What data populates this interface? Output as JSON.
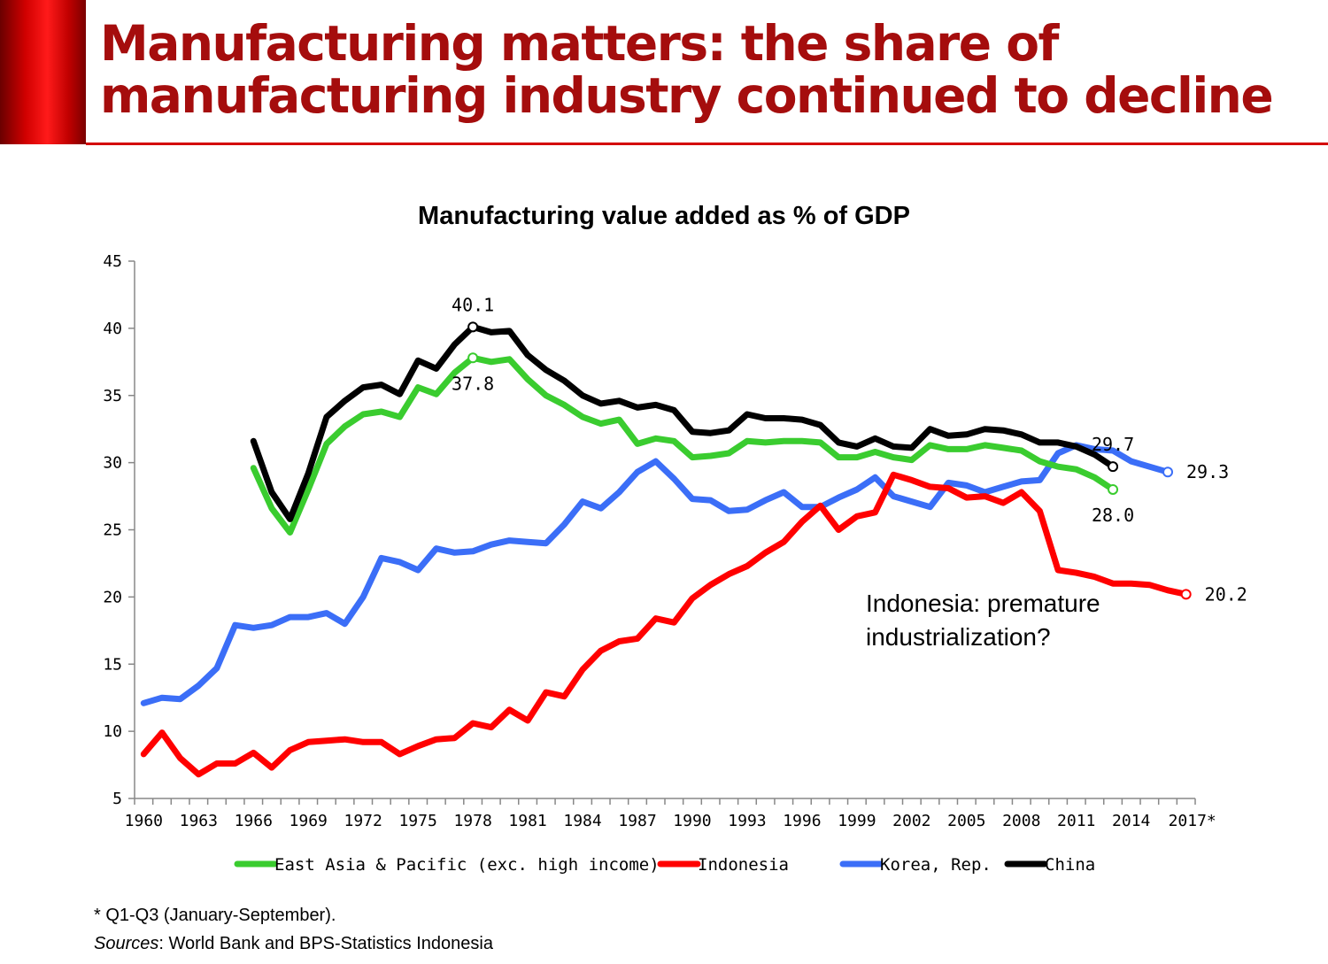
{
  "slide": {
    "title": "Manufacturing matters: the share of manufacturing industry continued to decline",
    "footnote": "* Q1-Q3 (January-September).",
    "sources_label": "Sources",
    "sources_text": ": World Bank and BPS-Statistics Indonesia"
  },
  "colors": {
    "title": "#a50d0d",
    "accent_bar": "#d40000"
  },
  "chart_data": {
    "type": "line",
    "title": "Manufacturing value added as % of GDP",
    "xlabel": "",
    "ylabel": "",
    "ylim": [
      5,
      45
    ],
    "yticks": [
      5,
      10,
      15,
      20,
      25,
      30,
      35,
      40,
      45
    ],
    "x": [
      1960,
      1961,
      1962,
      1963,
      1964,
      1965,
      1966,
      1967,
      1968,
      1969,
      1970,
      1971,
      1972,
      1973,
      1974,
      1975,
      1976,
      1977,
      1978,
      1979,
      1980,
      1981,
      1982,
      1983,
      1984,
      1985,
      1986,
      1987,
      1988,
      1989,
      1990,
      1991,
      1992,
      1993,
      1994,
      1995,
      1996,
      1997,
      1998,
      1999,
      2000,
      2001,
      2002,
      2003,
      2004,
      2005,
      2006,
      2007,
      2008,
      2009,
      2010,
      2011,
      2012,
      2013,
      2014,
      2015,
      2016,
      2017
    ],
    "x_tick_labels": [
      "1960",
      "1963",
      "1966",
      "1969",
      "1972",
      "1975",
      "1978",
      "1981",
      "1984",
      "1987",
      "1990",
      "1993",
      "1996",
      "1999",
      "2002",
      "2005",
      "2008",
      "2011",
      "2014",
      "2017*"
    ],
    "grid": false,
    "legend_position": "bottom",
    "series": [
      {
        "name": "East Asia & Pacific (exc. high income)",
        "color": "#3acc2f",
        "values": [
          null,
          null,
          null,
          null,
          null,
          null,
          29.6,
          26.6,
          24.8,
          28.0,
          31.4,
          32.7,
          33.6,
          33.8,
          33.4,
          35.6,
          35.1,
          36.7,
          37.8,
          37.5,
          37.7,
          36.2,
          35.0,
          34.3,
          33.4,
          32.9,
          33.2,
          31.4,
          31.8,
          31.6,
          30.4,
          30.5,
          30.7,
          31.6,
          31.5,
          31.6,
          31.6,
          31.5,
          30.4,
          30.4,
          30.8,
          30.4,
          30.2,
          31.3,
          31.0,
          31.0,
          31.3,
          31.1,
          30.9,
          30.1,
          29.7,
          29.5,
          28.9,
          28.0,
          null,
          null,
          null,
          null
        ]
      },
      {
        "name": "Indonesia",
        "color": "#ff0000",
        "values": [
          8.3,
          9.9,
          8.0,
          6.8,
          7.6,
          7.6,
          8.4,
          7.3,
          8.6,
          9.2,
          9.3,
          9.4,
          9.2,
          9.2,
          8.3,
          8.9,
          9.4,
          9.5,
          10.6,
          10.3,
          11.6,
          10.8,
          12.9,
          12.6,
          14.6,
          16.0,
          16.7,
          16.9,
          18.4,
          18.1,
          19.9,
          20.9,
          21.7,
          22.3,
          23.3,
          24.1,
          25.6,
          26.8,
          25.0,
          26.0,
          26.3,
          29.1,
          28.7,
          28.2,
          28.1,
          27.4,
          27.5,
          27.0,
          27.8,
          26.4,
          22.0,
          21.8,
          21.5,
          21.0,
          21.0,
          20.9,
          20.5,
          20.2
        ]
      },
      {
        "name": "Korea, Rep.",
        "color": "#3b6ef7",
        "values": [
          12.1,
          12.5,
          12.4,
          13.4,
          14.7,
          17.9,
          17.7,
          17.9,
          18.5,
          18.5,
          18.8,
          18.0,
          20.0,
          22.9,
          22.6,
          22.0,
          23.6,
          23.3,
          23.4,
          23.9,
          24.2,
          24.1,
          24.0,
          25.4,
          27.1,
          26.6,
          27.8,
          29.3,
          30.1,
          28.8,
          27.3,
          27.2,
          26.4,
          26.5,
          27.2,
          27.8,
          26.7,
          26.7,
          27.4,
          28.0,
          28.9,
          27.5,
          27.1,
          26.7,
          28.5,
          28.3,
          27.8,
          28.2,
          28.6,
          28.7,
          30.7,
          31.3,
          31.0,
          30.9,
          30.1,
          29.7,
          29.3,
          null
        ]
      },
      {
        "name": "China",
        "color": "#000000",
        "values": [
          null,
          null,
          null,
          null,
          null,
          null,
          31.6,
          27.8,
          25.8,
          29.2,
          33.4,
          34.6,
          35.6,
          35.8,
          35.1,
          37.6,
          37.0,
          38.8,
          40.1,
          39.7,
          39.8,
          38.0,
          36.9,
          36.1,
          35.0,
          34.4,
          34.6,
          34.1,
          34.3,
          33.9,
          32.3,
          32.2,
          32.4,
          33.6,
          33.3,
          33.3,
          33.2,
          32.8,
          31.5,
          31.2,
          31.8,
          31.2,
          31.1,
          32.5,
          32.0,
          32.1,
          32.5,
          32.4,
          32.1,
          31.5,
          31.5,
          31.2,
          30.6,
          29.7,
          null,
          null,
          null,
          null
        ]
      }
    ],
    "point_labels": [
      {
        "series": "China",
        "year": 1978,
        "text": "40.1",
        "placement": "above"
      },
      {
        "series": "East Asia & Pacific (exc. high income)",
        "year": 1978,
        "text": "37.8",
        "placement": "below"
      },
      {
        "series": "China",
        "year": 2013,
        "text": "29.7",
        "placement": "above"
      },
      {
        "series": "East Asia & Pacific (exc. high income)",
        "year": 2013,
        "text": "28.0",
        "placement": "below"
      },
      {
        "series": "Korea, Rep.",
        "year": 2016,
        "text": "29.3",
        "placement": "right"
      },
      {
        "series": "Indonesia",
        "year": 2017,
        "text": "20.2",
        "placement": "right"
      }
    ],
    "annotations": [
      {
        "text_line1": "Indonesia: premature",
        "text_line2": "industrialization?"
      }
    ]
  }
}
